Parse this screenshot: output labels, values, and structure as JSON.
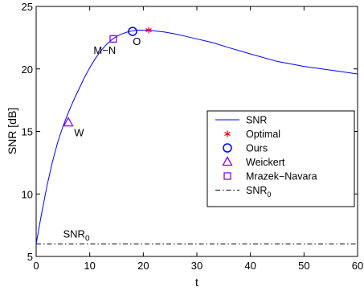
{
  "chart_data": {
    "type": "line",
    "xlabel": "t",
    "ylabel": "SNR [dB]",
    "xlim": [
      0,
      60
    ],
    "ylim": [
      5,
      25
    ],
    "grid": false,
    "legend_position": "right",
    "xticks": [
      0,
      10,
      20,
      30,
      40,
      50,
      60
    ],
    "yticks": [
      5,
      10,
      15,
      20,
      25
    ],
    "series": [
      {
        "name": "SNR",
        "style": "solid",
        "color": "#0000ff",
        "x": [
          0,
          1,
          2,
          3,
          4,
          5,
          6,
          7,
          8,
          9,
          10,
          11,
          12,
          13,
          14,
          15,
          16,
          17,
          18,
          19,
          20,
          21,
          22,
          24,
          26,
          28,
          30,
          33,
          36,
          40,
          45,
          50,
          55,
          60
        ],
        "y": [
          6.0,
          8.4,
          10.6,
          12.5,
          14.1,
          15.4,
          16.5,
          17.5,
          18.4,
          19.3,
          20.1,
          20.8,
          21.4,
          21.9,
          22.3,
          22.6,
          22.8,
          22.95,
          23.05,
          23.1,
          23.1,
          23.1,
          23.05,
          22.95,
          22.8,
          22.6,
          22.4,
          22.1,
          21.7,
          21.2,
          20.6,
          20.2,
          19.9,
          19.6
        ]
      },
      {
        "name": "Optimal",
        "marker": "asterisk",
        "color": "#ff0000",
        "x": [
          21
        ],
        "y": [
          23.1
        ]
      },
      {
        "name": "Ours",
        "marker": "circle",
        "color": "#0000ff",
        "x": [
          18
        ],
        "y": [
          23.0
        ]
      },
      {
        "name": "Weickert",
        "marker": "triangle",
        "color": "#8800ff",
        "x": [
          6
        ],
        "y": [
          15.7
        ]
      },
      {
        "name": "Mrazek−Navara",
        "marker": "square",
        "color": "#8800ff",
        "x": [
          14.4
        ],
        "y": [
          22.4
        ]
      },
      {
        "name": "SNR",
        "name_subscript": "0",
        "style": "dashdot",
        "color": "#000000",
        "x": [
          0,
          60
        ],
        "y": [
          6.0,
          6.0
        ]
      }
    ],
    "annotations": [
      {
        "text": "W",
        "x": 8,
        "y": 14.6
      },
      {
        "text": "M−N",
        "x": 12.8,
        "y": 21.2
      },
      {
        "text": "O",
        "x": 18.8,
        "y": 21.9
      },
      {
        "text": "SNR",
        "subscript": "0",
        "x": 7.5,
        "y": 6.5
      }
    ]
  }
}
